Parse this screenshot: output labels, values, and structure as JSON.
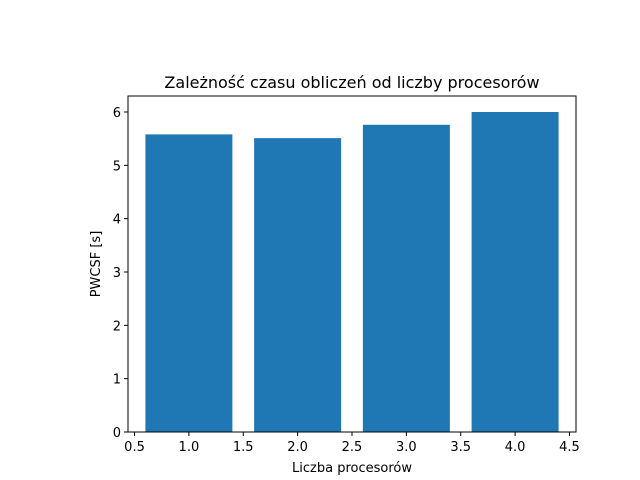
{
  "chart_data": {
    "type": "bar",
    "title": "Zależność czasu obliczeń od liczby procesorów",
    "xlabel": "Liczba procesorów",
    "ylabel": "PWCSF [s]",
    "x": [
      1,
      2,
      3,
      4
    ],
    "values": [
      5.58,
      5.51,
      5.76,
      6.0
    ],
    "bar_width": 0.8,
    "xlim": [
      0.44,
      4.56
    ],
    "ylim": [
      0,
      6.3
    ],
    "xticks": [
      0.5,
      1.0,
      1.5,
      2.0,
      2.5,
      3.0,
      3.5,
      4.0,
      4.5
    ],
    "xtick_labels": [
      "0.5",
      "1.0",
      "1.5",
      "2.0",
      "2.5",
      "3.0",
      "3.5",
      "4.0",
      "4.5"
    ],
    "yticks": [
      0,
      1,
      2,
      3,
      4,
      5,
      6
    ],
    "ytick_labels": [
      "0",
      "1",
      "2",
      "3",
      "4",
      "5",
      "6"
    ],
    "grid": false,
    "legend": false,
    "bar_color": "#1f77b4"
  }
}
